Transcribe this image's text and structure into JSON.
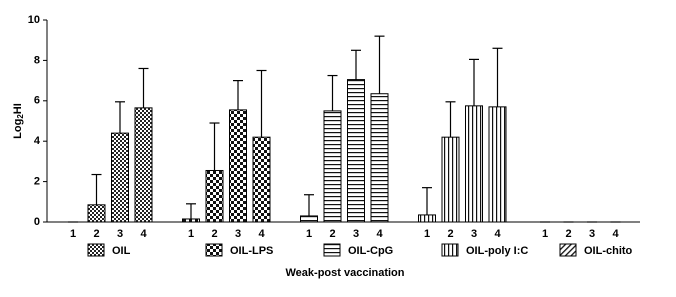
{
  "chart_data": {
    "type": "bar",
    "y_label": [
      "Log",
      "2",
      "HI"
    ],
    "x_label": "Weak-post vaccination",
    "categories": [
      "1",
      "2",
      "3",
      "4"
    ],
    "ylim": [
      0,
      10
    ],
    "yticks": [
      0,
      2,
      4,
      6,
      8,
      10
    ],
    "series": [
      {
        "name": "OIL",
        "pattern": "dense",
        "values": [
          0,
          0.85,
          4.4,
          5.65
        ],
        "errors": [
          0,
          1.5,
          1.55,
          1.95
        ]
      },
      {
        "name": "OIL-LPS",
        "pattern": "check",
        "values": [
          0.15,
          2.55,
          5.55,
          4.2
        ],
        "errors": [
          0.75,
          2.35,
          1.45,
          3.3
        ]
      },
      {
        "name": "OIL-CpG",
        "pattern": "horizontal",
        "values": [
          0.3,
          5.5,
          7.05,
          6.35
        ],
        "errors": [
          1.05,
          1.75,
          1.45,
          2.85
        ]
      },
      {
        "name": "OIL-poly I:C",
        "pattern": "vertical",
        "values": [
          0.35,
          4.2,
          5.75,
          5.7
        ],
        "errors": [
          1.35,
          1.75,
          2.3,
          2.9
        ]
      },
      {
        "name": "OIL-chito",
        "pattern": "diagonal",
        "values": [
          0,
          0,
          0,
          0
        ],
        "errors": [
          0,
          0,
          0,
          0
        ]
      }
    ]
  }
}
